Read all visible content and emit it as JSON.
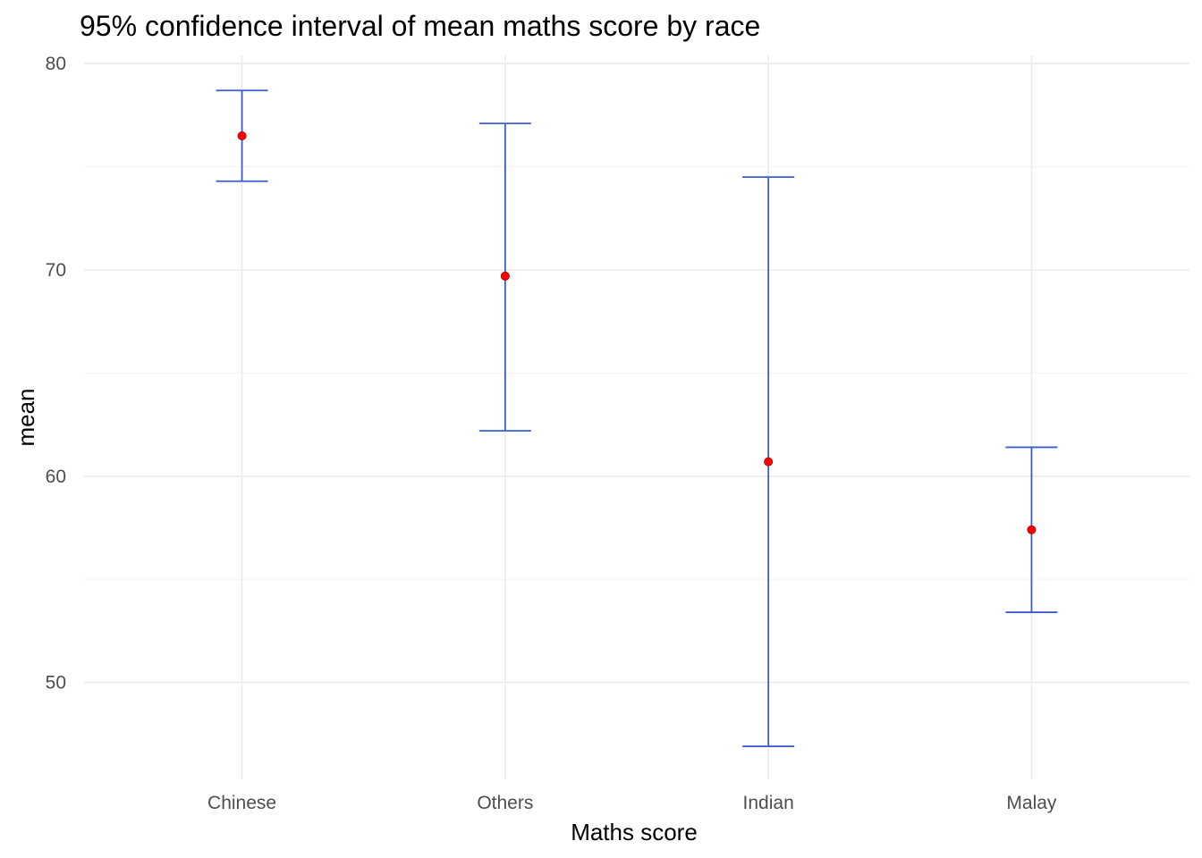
{
  "chart_data": {
    "type": "errorbar",
    "title": "95% confidence interval of mean maths score by race",
    "xlabel": "Maths score",
    "ylabel": "mean",
    "categories": [
      "Chinese",
      "Others",
      "Indian",
      "Malay"
    ],
    "mean": [
      76.5,
      69.7,
      60.7,
      57.4
    ],
    "lower": [
      74.3,
      62.2,
      46.9,
      53.4
    ],
    "upper": [
      78.7,
      77.1,
      74.5,
      61.4
    ],
    "ylim": [
      45.3,
      80.4
    ],
    "yticks": [
      50,
      60,
      70,
      80
    ],
    "grid": true,
    "legend": "none",
    "colors": {
      "errorbar": "#3a5fcd",
      "point": "#ff0000"
    }
  }
}
